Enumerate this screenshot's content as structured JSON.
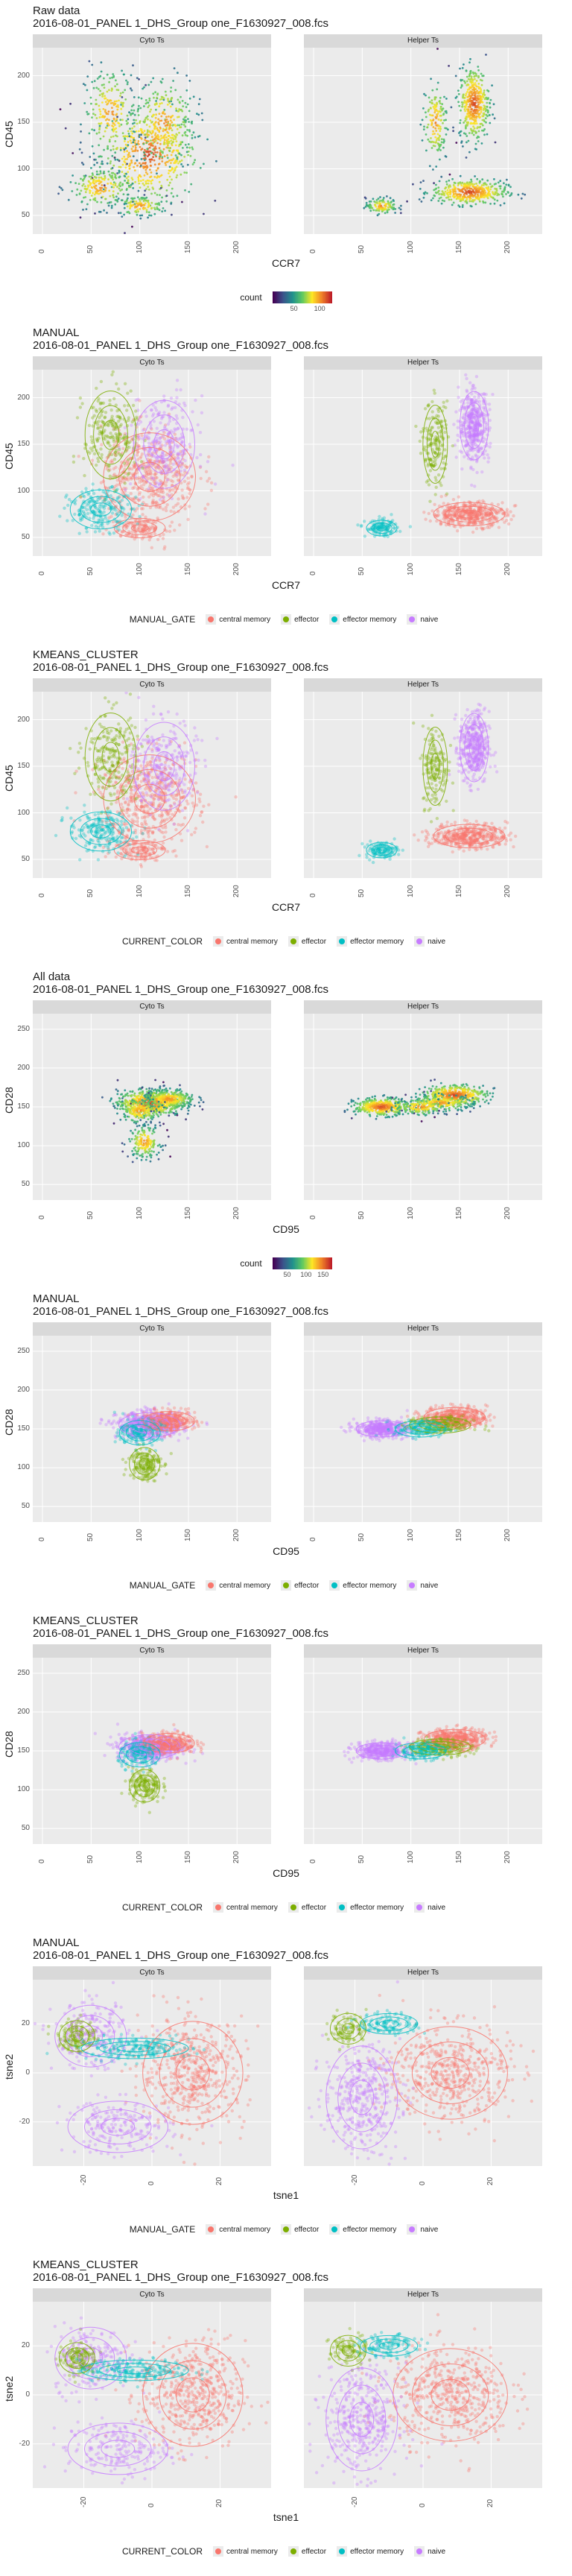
{
  "file_label": "2016-08-01_PANEL 1_DHS_Group one_F1630927_008.fcs",
  "facets": [
    "Cyto Ts",
    "Helper Ts"
  ],
  "colors": {
    "central memory": "#f8766d",
    "effector": "#7cae00",
    "effector memory": "#00bfc4",
    "naive": "#c77cff",
    "viridis_low": "#440154",
    "viridis_mid": "#21908c",
    "viridis_high": "#fde725"
  },
  "chart_data": [
    {
      "type": "scatter",
      "title": "Raw data",
      "subtitle": "2016-08-01_PANEL 1_DHS_Group one_F1630927_008.fcs",
      "xlabel": "CCR7",
      "ylabel": "CD45",
      "xlim": [
        -10,
        235
      ],
      "ylim": [
        30,
        230
      ],
      "xticks": [
        0,
        50,
        100,
        150,
        200
      ],
      "yticks": [
        50,
        100,
        150,
        200
      ],
      "legend": {
        "title": "count",
        "kind": "colorbar",
        "ticks": [
          50,
          100
        ]
      },
      "grid": true,
      "legend_position": "bottom"
    },
    {
      "type": "scatter",
      "title": "MANUAL",
      "subtitle": "2016-08-01_PANEL 1_DHS_Group one_F1630927_008.fcs",
      "xlabel": "CCR7",
      "ylabel": "CD45",
      "xlim": [
        -10,
        235
      ],
      "ylim": [
        30,
        230
      ],
      "xticks": [
        0,
        50,
        100,
        150,
        200
      ],
      "yticks": [
        50,
        100,
        150,
        200
      ],
      "legend": {
        "title": "MANUAL_GATE",
        "kind": "discrete",
        "entries": [
          "central memory",
          "effector",
          "effector memory",
          "naive"
        ]
      },
      "grid": true,
      "legend_position": "bottom"
    },
    {
      "type": "scatter",
      "title": "KMEANS_CLUSTER",
      "subtitle": "2016-08-01_PANEL 1_DHS_Group one_F1630927_008.fcs",
      "xlabel": "CCR7",
      "ylabel": "CD45",
      "xlim": [
        -10,
        235
      ],
      "ylim": [
        30,
        230
      ],
      "xticks": [
        0,
        50,
        100,
        150,
        200
      ],
      "yticks": [
        50,
        100,
        150,
        200
      ],
      "legend": {
        "title": "CURRENT_COLOR",
        "kind": "discrete",
        "entries": [
          "central memory",
          "effector",
          "effector memory",
          "naive"
        ]
      },
      "grid": true,
      "legend_position": "bottom"
    },
    {
      "type": "scatter",
      "title": "All data",
      "subtitle": "2016-08-01_PANEL 1_DHS_Group one_F1630927_008.fcs",
      "xlabel": "CD95",
      "ylabel": "CD28",
      "xlim": [
        -10,
        235
      ],
      "ylim": [
        30,
        270
      ],
      "xticks": [
        0,
        50,
        100,
        150,
        200
      ],
      "yticks": [
        50,
        100,
        150,
        200,
        250
      ],
      "legend": {
        "title": "count",
        "kind": "colorbar",
        "ticks": [
          50,
          100,
          150
        ]
      },
      "grid": true,
      "legend_position": "bottom"
    },
    {
      "type": "scatter",
      "title": "MANUAL",
      "subtitle": "2016-08-01_PANEL 1_DHS_Group one_F1630927_008.fcs",
      "xlabel": "CD95",
      "ylabel": "CD28",
      "xlim": [
        -10,
        235
      ],
      "ylim": [
        30,
        270
      ],
      "xticks": [
        0,
        50,
        100,
        150,
        200
      ],
      "yticks": [
        50,
        100,
        150,
        200,
        250
      ],
      "legend": {
        "title": "MANUAL_GATE",
        "kind": "discrete",
        "entries": [
          "central memory",
          "effector",
          "effector memory",
          "naive"
        ]
      },
      "grid": true,
      "legend_position": "bottom"
    },
    {
      "type": "scatter",
      "title": "KMEANS_CLUSTER",
      "subtitle": "2016-08-01_PANEL 1_DHS_Group one_F1630927_008.fcs",
      "xlabel": "CD95",
      "ylabel": "CD28",
      "xlim": [
        -10,
        235
      ],
      "ylim": [
        30,
        270
      ],
      "xticks": [
        0,
        50,
        100,
        150,
        200
      ],
      "yticks": [
        50,
        100,
        150,
        200,
        250
      ],
      "legend": {
        "title": "CURRENT_COLOR",
        "kind": "discrete",
        "entries": [
          "central memory",
          "effector",
          "effector memory",
          "naive"
        ]
      },
      "grid": true,
      "legend_position": "bottom"
    },
    {
      "type": "scatter",
      "title": "MANUAL",
      "subtitle": "2016-08-01_PANEL 1_DHS_Group one_F1630927_008.fcs",
      "xlabel": "tsne1",
      "ylabel": "tsne2",
      "xlim": [
        -35,
        35
      ],
      "ylim": [
        -38,
        38
      ],
      "xticks": [
        -20,
        0,
        20
      ],
      "yticks": [
        -20,
        0,
        20
      ],
      "legend": {
        "title": "MANUAL_GATE",
        "kind": "discrete",
        "entries": [
          "central memory",
          "effector",
          "effector memory",
          "naive"
        ]
      },
      "grid": true,
      "legend_position": "bottom"
    },
    {
      "type": "scatter",
      "title": "KMEANS_CLUSTER",
      "subtitle": "2016-08-01_PANEL 1_DHS_Group one_F1630927_008.fcs",
      "xlabel": "tsne1",
      "ylabel": "tsne2",
      "xlim": [
        -35,
        35
      ],
      "ylim": [
        -38,
        38
      ],
      "xticks": [
        -20,
        0,
        20
      ],
      "yticks": [
        -20,
        0,
        20
      ],
      "legend": {
        "title": "CURRENT_COLOR",
        "kind": "discrete",
        "entries": [
          "central memory",
          "effector",
          "effector memory",
          "naive"
        ]
      },
      "grid": true,
      "legend_position": "bottom"
    }
  ]
}
